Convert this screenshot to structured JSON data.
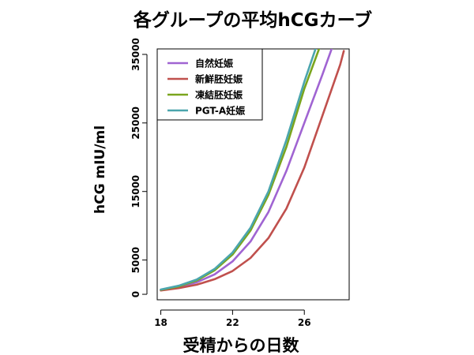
{
  "chart_data": {
    "type": "line",
    "title": "各グループの平均hCGカーブ",
    "xlabel": "受精からの日数",
    "ylabel": "hCG  mIU/ml",
    "xlim": [
      17.8,
      28.5
    ],
    "ylim": [
      -800,
      35800
    ],
    "x_ticks": [
      18,
      22,
      26
    ],
    "y_ticks": [
      0,
      5000,
      15000,
      25000,
      35000
    ],
    "grid": false,
    "legend_position": "top-left",
    "series": [
      {
        "name": "自然妊娠",
        "color": "#a064d2",
        "x": [
          18,
          19,
          20,
          21,
          22,
          23,
          24,
          25,
          26,
          27,
          27.55
        ],
        "y": [
          620,
          1050,
          1750,
          2900,
          4800,
          7700,
          12000,
          18000,
          25000,
          32000,
          36000
        ]
      },
      {
        "name": "新鮮胚妊娠",
        "color": "#c0504d",
        "x": [
          18,
          19,
          20,
          21,
          22,
          23,
          24,
          25,
          26,
          27,
          28,
          28.2
        ],
        "y": [
          560,
          900,
          1400,
          2200,
          3400,
          5300,
          8200,
          12500,
          18500,
          26000,
          33500,
          35500
        ]
      },
      {
        "name": "凍結胚妊娠",
        "color": "#7aa51e",
        "x": [
          18,
          19,
          20,
          21,
          22,
          23,
          24,
          25,
          26,
          26.85
        ],
        "y": [
          650,
          1150,
          2000,
          3500,
          5800,
          9300,
          14500,
          21500,
          30000,
          36000
        ]
      },
      {
        "name": "PGT-A妊娠",
        "color": "#4ba5ad",
        "x": [
          18,
          19,
          20,
          21,
          22,
          23,
          24,
          25,
          26,
          26.65
        ],
        "y": [
          700,
          1250,
          2150,
          3700,
          6100,
          9700,
          15000,
          22500,
          31000,
          36000
        ]
      }
    ]
  }
}
